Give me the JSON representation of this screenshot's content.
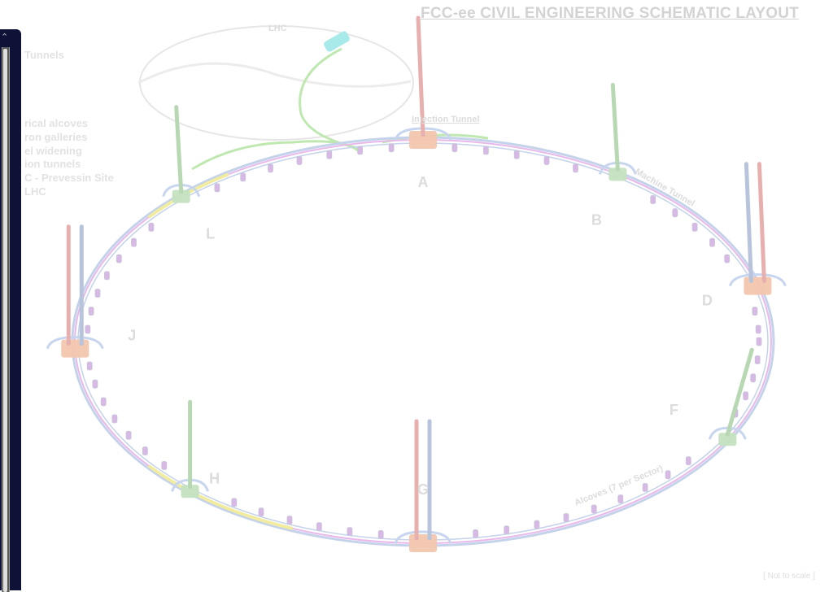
{
  "title": "FCC-ee CIVIL ENGINEERING SCHEMATIC LAYOUT",
  "scale_note": "[ Not to scale ]",
  "legend_items": [
    "Tunnels",
    "",
    "",
    "",
    "",
    "rical alcoves",
    "ron galleries",
    "el widening",
    "ion tunnels",
    "C - Prevessin Site",
    "LHC"
  ],
  "labels": {
    "lhc": "LHC",
    "injection_tunnel": "Injection Tunnel",
    "machine_tunnel": "Machine Tunnel",
    "alcoves": "Alcoves (7 per Sector)"
  },
  "points": [
    {
      "id": "A",
      "label": "A",
      "t": 270,
      "type": "experiment",
      "shaft_colors": [
        "#e7b0ae"
      ]
    },
    {
      "id": "B",
      "label": "B",
      "t": 304,
      "type": "technical",
      "shaft_colors": [
        "#b7d8b3"
      ]
    },
    {
      "id": "D",
      "label": "D",
      "t": 344,
      "type": "experiment",
      "shaft_colors": [
        "#b8c4dc",
        "#e7b0ae"
      ]
    },
    {
      "id": "F",
      "label": "F",
      "t": 29,
      "type": "technical",
      "shaft_colors": [
        "#b7d8b3"
      ]
    },
    {
      "id": "G",
      "label": "G",
      "t": 90,
      "type": "experiment",
      "shaft_colors": [
        "#e7b0ae",
        "#b8c4dc"
      ]
    },
    {
      "id": "H",
      "label": "H",
      "t": 132,
      "type": "technical",
      "shaft_colors": [
        "#b7d8b3"
      ]
    },
    {
      "id": "J",
      "label": "J",
      "t": 178,
      "type": "experiment",
      "shaft_colors": [
        "#e7b0ae",
        "#b8c4dc"
      ]
    },
    {
      "id": "L",
      "label": "L",
      "t": 226,
      "type": "technical",
      "shaft_colors": [
        "#b7d8b3"
      ]
    }
  ],
  "colors": {
    "ring_outer": "#c4d2ea",
    "ring_inner": "#e8b8ea",
    "alcove": "#d8b8e4",
    "alcove_edge": "#c6c6da",
    "lhc_ring": "#e6e6e6",
    "injection_tunnel": "#bfe8b0",
    "widening": "#f2eca0",
    "cavern_red": "#f3c6ae",
    "cavern_green": "#c4e2c0",
    "cavern_blue": "#c7d6ee",
    "cyan_shaft": "#a8eaea",
    "text_faint": "#dcdcdc"
  }
}
